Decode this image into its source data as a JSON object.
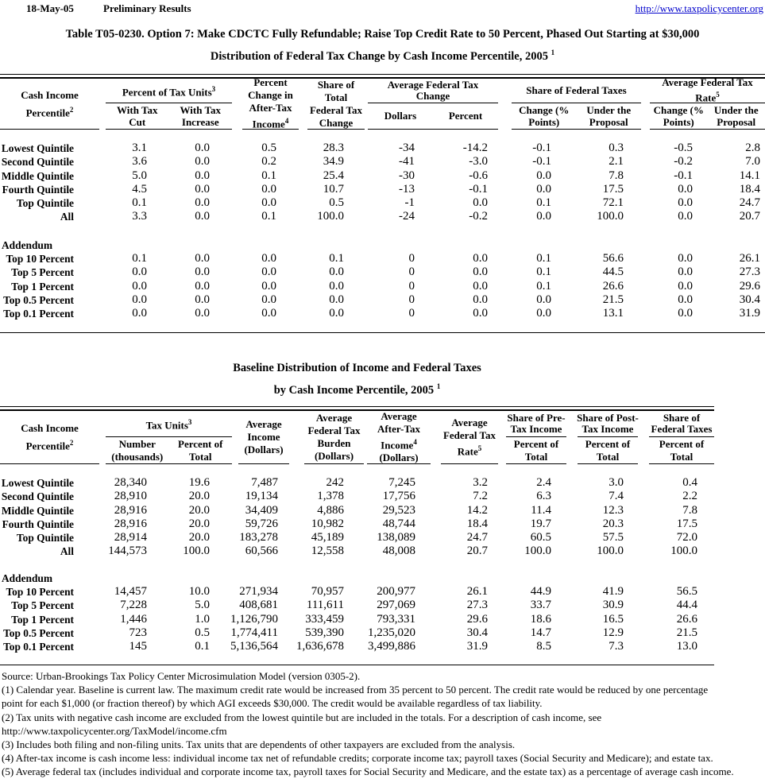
{
  "header": {
    "date": "18-May-05",
    "status": "Preliminary Results",
    "url": "http://www.taxpolicycenter.org"
  },
  "title": {
    "line1": "Table T05-0230. Option 7: Make CDCTC Fully Refundable; Raise Top Credit Rate to 50 Percent, Phased Out Starting at $30,000",
    "line2": "Distribution of Federal Tax Change by Cash Income Percentile, 2005",
    "sup": "1"
  },
  "table1": {
    "header": {
      "cash_income": {
        "l1": "Cash Income",
        "l2": "Percentile",
        "sup": "2"
      },
      "ptu": {
        "title": "Percent of Tax Units",
        "sup": "3",
        "sub1l1": "With Tax",
        "sub1l2": "Cut",
        "sub2l1": "With Tax",
        "sub2l2": "Increase"
      },
      "ati": {
        "l1": "Percent",
        "l2": "Change in",
        "l3": "After-Tax",
        "l4": "Income",
        "sup": "4"
      },
      "stc": {
        "l1": "Share of",
        "l2": "Total",
        "l3": "Federal Tax",
        "l4": "Change"
      },
      "afc": {
        "t1": "Average Federal Tax",
        "t2": "Change",
        "sub1": "Dollars",
        "sub2": "Percent"
      },
      "sft": {
        "title": "Share of Federal Taxes",
        "sub1l1": "Change (%",
        "sub1l2": "Points)",
        "sub2l1": "Under the",
        "sub2l2": "Proposal"
      },
      "afr": {
        "t1": "Average Federal Tax",
        "t2": "Rate",
        "sup": "5",
        "sub1l1": "Change (%",
        "sub1l2": "Points)",
        "sub2l1": "Under the",
        "sub2l2": "Proposal"
      }
    },
    "rows": [
      {
        "label": "Lowest Quintile",
        "values": [
          "3.1",
          "0.0",
          "0.5",
          "28.3",
          "-34",
          "-14.2",
          "-0.1",
          "0.3",
          "-0.5",
          "2.8"
        ]
      },
      {
        "label": "Second Quintile",
        "values": [
          "3.6",
          "0.0",
          "0.2",
          "34.9",
          "-41",
          "-3.0",
          "-0.1",
          "2.1",
          "-0.2",
          "7.0"
        ]
      },
      {
        "label": "Middle Quintile",
        "values": [
          "5.0",
          "0.0",
          "0.1",
          "25.4",
          "-30",
          "-0.6",
          "0.0",
          "7.8",
          "-0.1",
          "14.1"
        ]
      },
      {
        "label": "Fourth Quintile",
        "values": [
          "4.5",
          "0.0",
          "0.0",
          "10.7",
          "-13",
          "-0.1",
          "0.0",
          "17.5",
          "0.0",
          "18.4"
        ]
      },
      {
        "label": "Top Quintile",
        "values": [
          "0.1",
          "0.0",
          "0.0",
          "0.5",
          "-1",
          "0.0",
          "0.1",
          "72.1",
          "0.0",
          "24.7"
        ]
      },
      {
        "label": "All",
        "values": [
          "3.3",
          "0.0",
          "0.1",
          "100.0",
          "-24",
          "-0.2",
          "0.0",
          "100.0",
          "0.0",
          "20.7"
        ]
      }
    ],
    "addendum_label": "Addendum",
    "addendum_rows": [
      {
        "label": "Top 10 Percent",
        "values": [
          "0.1",
          "0.0",
          "0.0",
          "0.1",
          "0",
          "0.0",
          "0.1",
          "56.6",
          "0.0",
          "26.1"
        ]
      },
      {
        "label": "Top 5 Percent",
        "values": [
          "0.0",
          "0.0",
          "0.0",
          "0.0",
          "0",
          "0.0",
          "0.1",
          "44.5",
          "0.0",
          "27.3"
        ]
      },
      {
        "label": "Top 1 Percent",
        "values": [
          "0.0",
          "0.0",
          "0.0",
          "0.0",
          "0",
          "0.0",
          "0.1",
          "26.6",
          "0.0",
          "29.6"
        ]
      },
      {
        "label": "Top 0.5 Percent",
        "values": [
          "0.0",
          "0.0",
          "0.0",
          "0.0",
          "0",
          "0.0",
          "0.0",
          "21.5",
          "0.0",
          "30.4"
        ]
      },
      {
        "label": "Top 0.1 Percent",
        "values": [
          "0.0",
          "0.0",
          "0.0",
          "0.0",
          "0",
          "0.0",
          "0.0",
          "13.1",
          "0.0",
          "31.9"
        ]
      }
    ]
  },
  "table2": {
    "title": {
      "line1": "Baseline Distribution of Income and Federal Taxes",
      "line2": "by Cash Income Percentile, 2005",
      "sup": "1"
    },
    "header": {
      "cash_income": {
        "l1": "Cash Income",
        "l2": "Percentile",
        "sup": "2"
      },
      "tax_units": {
        "title": "Tax Units",
        "sup": "3",
        "sub1l1": "Number",
        "sub1l2": "(thousands)",
        "sub2l1": "Percent of",
        "sub2l2": "Total"
      },
      "avg_income": {
        "l1": "Average",
        "l2": "Income",
        "l3": "(Dollars)"
      },
      "avg_burden": {
        "l1": "Average",
        "l2": "Federal Tax",
        "l3": "Burden",
        "l4": "(Dollars)"
      },
      "avg_after": {
        "l1": "Average",
        "l2": "After-Tax",
        "l3": "Income",
        "sup": "4",
        "l4": "(Dollars)"
      },
      "avg_rate": {
        "l1": "Average",
        "l2": "Federal Tax",
        "l3": "Rate",
        "sup": "5"
      },
      "share_pre": {
        "t1": "Share of Pre-",
        "t2": "Tax Income",
        "subl1": "Percent of",
        "subl2": "Total"
      },
      "share_post": {
        "t1": "Share of Post-",
        "t2": "Tax Income",
        "subl1": "Percent of",
        "subl2": "Total"
      },
      "share_fed": {
        "t1": "Share of",
        "t2": "Federal Taxes",
        "subl1": "Percent of",
        "subl2": "Total"
      }
    },
    "rows": [
      {
        "label": "Lowest Quintile",
        "values": [
          "28,340",
          "19.6",
          "7,487",
          "242",
          "7,245",
          "3.2",
          "2.4",
          "3.0",
          "0.4"
        ]
      },
      {
        "label": "Second Quintile",
        "values": [
          "28,910",
          "20.0",
          "19,134",
          "1,378",
          "17,756",
          "7.2",
          "6.3",
          "7.4",
          "2.2"
        ]
      },
      {
        "label": "Middle Quintile",
        "values": [
          "28,916",
          "20.0",
          "34,409",
          "4,886",
          "29,523",
          "14.2",
          "11.4",
          "12.3",
          "7.8"
        ]
      },
      {
        "label": "Fourth Quintile",
        "values": [
          "28,916",
          "20.0",
          "59,726",
          "10,982",
          "48,744",
          "18.4",
          "19.7",
          "20.3",
          "17.5"
        ]
      },
      {
        "label": "Top Quintile",
        "values": [
          "28,914",
          "20.0",
          "183,278",
          "45,189",
          "138,089",
          "24.7",
          "60.5",
          "57.5",
          "72.0"
        ]
      },
      {
        "label": "All",
        "values": [
          "144,573",
          "100.0",
          "60,566",
          "12,558",
          "48,008",
          "20.7",
          "100.0",
          "100.0",
          "100.0"
        ]
      }
    ],
    "addendum_label": "Addendum",
    "addendum_rows": [
      {
        "label": "Top 10 Percent",
        "values": [
          "14,457",
          "10.0",
          "271,934",
          "70,957",
          "200,977",
          "26.1",
          "44.9",
          "41.9",
          "56.5"
        ]
      },
      {
        "label": "Top 5 Percent",
        "values": [
          "7,228",
          "5.0",
          "408,681",
          "111,611",
          "297,069",
          "27.3",
          "33.7",
          "30.9",
          "44.4"
        ]
      },
      {
        "label": "Top 1 Percent",
        "values": [
          "1,446",
          "1.0",
          "1,126,790",
          "333,459",
          "793,331",
          "29.6",
          "18.6",
          "16.5",
          "26.6"
        ]
      },
      {
        "label": "Top 0.5 Percent",
        "values": [
          "723",
          "0.5",
          "1,774,411",
          "539,390",
          "1,235,020",
          "30.4",
          "14.7",
          "12.9",
          "21.5"
        ]
      },
      {
        "label": "Top 0.1 Percent",
        "values": [
          "145",
          "0.1",
          "5,136,564",
          "1,636,678",
          "3,499,886",
          "31.9",
          "8.5",
          "7.3",
          "13.0"
        ]
      }
    ]
  },
  "footnotes": [
    "Source: Urban-Brookings Tax Policy Center Microsimulation Model (version 0305-2).",
    "(1) Calendar year. Baseline is current law. The maximum credit rate would be increased from 35 percent to 50 percent.  The credit rate would be reduced by one percentage",
    "point for each $1,000 (or fraction thereof) by which AGI exceeds $30,000.  The credit would be available regardless of tax liability.",
    "(2) Tax units with negative cash income are excluded from the lowest quintile but are included in the totals. For a description of cash income, see",
    "http://www.taxpolicycenter.org/TaxModel/income.cfm",
    "(3) Includes both filing and non-filing units.  Tax units that are dependents of other taxpayers are excluded from the analysis.",
    "(4) After-tax income is cash income less: individual income tax net of refundable credits; corporate income tax; payroll taxes (Social Security and Medicare); and estate tax.",
    "(5) Average federal tax (includes individual and corporate income tax, payroll taxes for Social Security and Medicare, and the estate tax) as a percentage of average cash income."
  ]
}
